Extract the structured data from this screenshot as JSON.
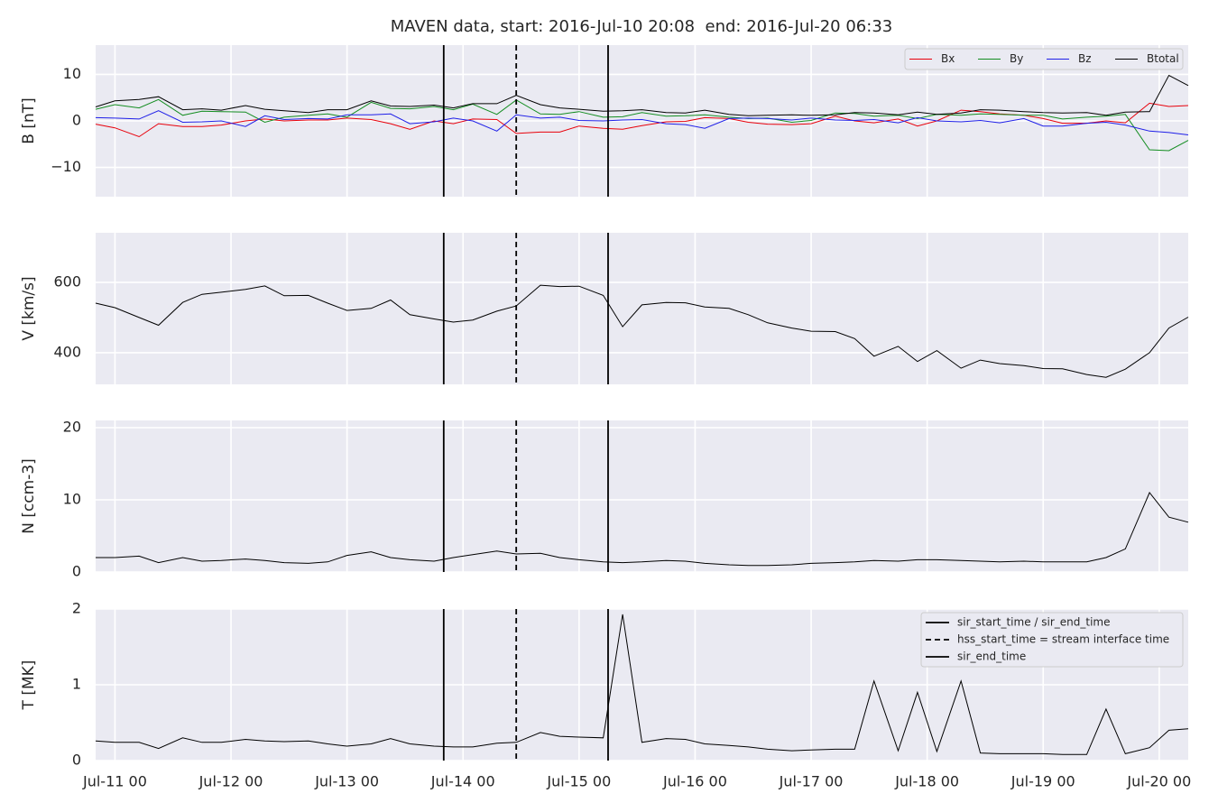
{
  "chart_data": [
    {
      "type": "line",
      "title": "MAVEN data, start: 2016-Jul-10 20:08  end: 2016-Jul-20 06:33",
      "ylabel": "B [nT]",
      "ylim": [
        -16.3,
        16.3
      ],
      "yticks": [
        {
          "value": -10,
          "label": "−10"
        },
        0,
        10
      ],
      "grid": true,
      "legend": "upper right",
      "series": [
        {
          "name": "Bx",
          "color": "#e8000b",
          "values": [
            -0.7,
            -1.5,
            -3.4,
            -0.6,
            -1.2,
            -1.2,
            -0.9,
            0,
            0.4,
            0,
            0.2,
            0.2,
            0.6,
            0.3,
            -0.6,
            -1.8,
            0,
            -0.6,
            0.4,
            0.3,
            -2.7,
            -2.4,
            -2.4,
            -1.1,
            -1.6,
            -1.8,
            -1.0,
            -0.2,
            -0.1,
            0.7,
            0.5,
            -0.3,
            -0.7,
            -0.8,
            -0.6,
            1.0,
            0,
            -0.4,
            0.4,
            -1.1,
            0,
            2.3,
            2.0,
            1.5,
            1.2,
            0.5,
            -0.5,
            -0.5,
            0,
            -0.4,
            3.8,
            3.1,
            3.3
          ]
        },
        {
          "name": "By",
          "color": "#138d20",
          "values": [
            2.5,
            3.5,
            2.8,
            4.6,
            1.2,
            2.1,
            2.0,
            1.9,
            -0.3,
            0.8,
            1.2,
            1.5,
            0.8,
            4.0,
            2.7,
            2.6,
            3.1,
            2.4,
            3.6,
            1.4,
            4.5,
            1.5,
            1.4,
            2.0,
            0.8,
            0.9,
            1.8,
            1.0,
            1.1,
            1.3,
            0.8,
            0.5,
            0.6,
            -0.3,
            0.1,
            1.7,
            1.6,
            1.0,
            1.2,
            0.5,
            1.4,
            1.2,
            1.5,
            1.4,
            1.2,
            1.2,
            0.4,
            0.8,
            1.0,
            1.4,
            -6.2,
            -6.4,
            -4.2
          ]
        },
        {
          "name": "Bz",
          "color": "#1f1fe8",
          "values": [
            0.7,
            0.6,
            0.4,
            2.2,
            -0.3,
            -0.2,
            0,
            -1.2,
            1.1,
            0.3,
            0.5,
            0.4,
            1.3,
            1.3,
            1.5,
            -0.6,
            -0.2,
            0.6,
            0,
            -2.2,
            1.3,
            0.6,
            0.8,
            0.1,
            0,
            0.2,
            0.3,
            -0.6,
            -0.8,
            -1.6,
            0.5,
            0.6,
            0.5,
            0.2,
            0.6,
            0.2,
            0.1,
            0.3,
            -0.4,
            0.7,
            0,
            -0.2,
            0.1,
            -0.4,
            0.5,
            -1.1,
            -1.1,
            -0.5,
            -0.3,
            -0.9,
            -2.2,
            -2.5,
            -3.0
          ]
        },
        {
          "name": "Btotal",
          "color": "#000000",
          "values": [
            3.0,
            4.3,
            4.6,
            5.2,
            2.4,
            2.6,
            2.3,
            3.3,
            2.5,
            2.2,
            1.8,
            2.4,
            2.4,
            4.3,
            3.2,
            3.1,
            3.4,
            2.8,
            3.7,
            3.7,
            5.5,
            3.5,
            2.8,
            2.5,
            2.1,
            2.2,
            2.4,
            1.8,
            1.7,
            2.3,
            1.4,
            1.1,
            1.2,
            1.3,
            1.2,
            1.3,
            1.8,
            1.7,
            1.3,
            1.9,
            1.4,
            1.7,
            2.4,
            2.3,
            2.0,
            1.8,
            1.7,
            1.8,
            1.2,
            1.9,
            2.0,
            9.8,
            7.6
          ]
        }
      ]
    },
    {
      "type": "line",
      "ylabel": "V [km/s]",
      "ylim": [
        310,
        741
      ],
      "yticks": [
        400,
        600
      ],
      "grid": true,
      "color": "#000000",
      "values": [
        541,
        528,
        500,
        478,
        543,
        566,
        572,
        580,
        590,
        562,
        563,
        541,
        520,
        526,
        550,
        508,
        496,
        487,
        493,
        518,
        533,
        592,
        588,
        589,
        563,
        474,
        536,
        543,
        542,
        530,
        526,
        508,
        485,
        470,
        461,
        460,
        440,
        390,
        418,
        375,
        406,
        356,
        379,
        369,
        363,
        355,
        354,
        338,
        330,
        353,
        400,
        470,
        501
      ]
    },
    {
      "type": "line",
      "ylabel": "N [ccm-3]",
      "ylim": [
        0,
        21
      ],
      "yticks": [
        0,
        10,
        20
      ],
      "grid": true,
      "color": "#000000",
      "values": [
        2.0,
        2.0,
        2.2,
        1.3,
        2.0,
        1.5,
        1.6,
        1.8,
        1.6,
        1.3,
        1.2,
        1.4,
        2.3,
        2.8,
        2.0,
        1.7,
        1.5,
        2.0,
        2.4,
        2.9,
        2.5,
        2.6,
        2.0,
        1.7,
        1.4,
        1.3,
        1.4,
        1.6,
        1.5,
        1.2,
        1.0,
        0.9,
        0.9,
        1.0,
        1.2,
        1.3,
        1.4,
        1.6,
        1.5,
        1.7,
        1.7,
        1.6,
        1.5,
        1.4,
        1.5,
        1.4,
        1.4,
        1.4,
        2.0,
        3.2,
        11.0,
        7.6,
        6.9
      ]
    },
    {
      "type": "line",
      "ylabel": "T [MK]",
      "ylim": [
        0,
        2
      ],
      "yticks": [
        0,
        1,
        2
      ],
      "grid": true,
      "color": "#000000",
      "legend": "upper right",
      "values": [
        0.26,
        0.24,
        0.24,
        0.16,
        0.3,
        0.24,
        0.24,
        0.28,
        0.26,
        0.25,
        0.26,
        0.22,
        0.19,
        0.22,
        0.29,
        0.22,
        0.19,
        0.18,
        0.18,
        0.23,
        0.24,
        0.37,
        0.32,
        0.31,
        0.3,
        1.93,
        0.24,
        0.29,
        0.28,
        0.22,
        0.2,
        0.18,
        0.15,
        0.13,
        0.14,
        0.15,
        0.15,
        1.05,
        0.13,
        0.9,
        0.12,
        1.05,
        0.1,
        0.09,
        0.09,
        0.09,
        0.08,
        0.08,
        0.68,
        0.09,
        0.17,
        0.4,
        0.42
      ],
      "x": [
        "Jul-10 20",
        "Jul-11 00",
        "Jul-11 05",
        "Jul-11 09",
        "Jul-11 14",
        "Jul-11 18",
        "Jul-11 22",
        "Jul-12 03",
        "Jul-12 07",
        "Jul-12 11",
        "Jul-12 16",
        "Jul-12 20",
        "Jul-13 00",
        "Jul-13 05",
        "Jul-13 09",
        "Jul-13 13",
        "Jul-13 18",
        "Jul-13 22",
        "Jul-14 02",
        "Jul-14 07",
        "Jul-14 11",
        "Jul-14 16",
        "Jul-14 20",
        "Jul-15 00",
        "Jul-15 05",
        "Jul-15 09",
        "Jul-15 13",
        "Jul-15 18",
        "Jul-15 22",
        "Jul-16 02",
        "Jul-16 07",
        "Jul-16 11",
        "Jul-16 15",
        "Jul-16 20",
        "Jul-17 00",
        "Jul-17 05",
        "Jul-17 09",
        "Jul-17 13",
        "Jul-17 18",
        "Jul-17 22",
        "Jul-18 02",
        "Jul-18 07",
        "Jul-18 11",
        "Jul-18 15",
        "Jul-18 20",
        "Jul-19 00",
        "Jul-19 04",
        "Jul-19 09",
        "Jul-19 13",
        "Jul-19 17",
        "Jul-19 22",
        "Jul-20 02",
        "Jul-20 06"
      ],
      "xlim": [
        "Jul-10 20",
        "Jul-20 06"
      ],
      "xticks": [
        "Jul-11 00",
        "Jul-12 00",
        "Jul-13 00",
        "Jul-14 00",
        "Jul-15 00",
        "Jul-16 00",
        "Jul-17 00",
        "Jul-18 00",
        "Jul-19 00",
        "Jul-20 00"
      ],
      "vlines": [
        {
          "x": "Jul-13 20",
          "label": "sir_start_time / sir_end_time",
          "style": "solid",
          "color": "#000000"
        },
        {
          "x": "Jul-14 11",
          "label": "hss_start_time = stream interface time",
          "style": "dashed",
          "color": "#000000"
        },
        {
          "x": "Jul-15 06",
          "label": "sir_end_time",
          "style": "solid",
          "color": "#000000"
        }
      ]
    }
  ]
}
